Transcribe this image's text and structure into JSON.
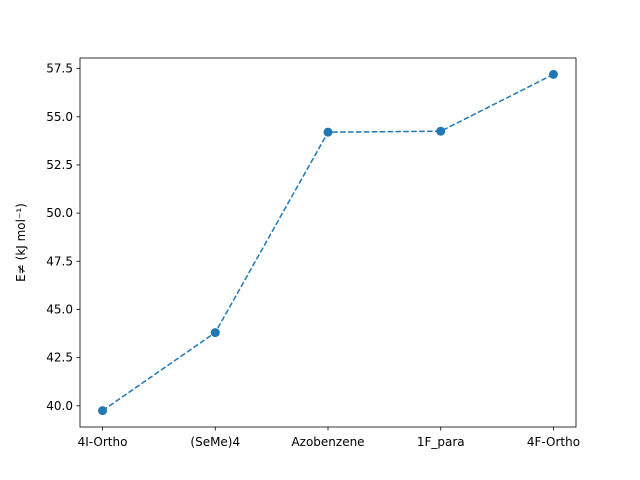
{
  "chart_data": {
    "type": "line",
    "categories": [
      "4I-Ortho",
      "(SeMe)4",
      "Azobenzene",
      "1F_para",
      "4F-Ortho"
    ],
    "series": [
      {
        "values": [
          39.75,
          43.8,
          54.2,
          54.25,
          57.2
        ],
        "color": "#1f77b4",
        "line_style": "dashed",
        "marker": "circle"
      }
    ],
    "xlabel": "",
    "ylabel": "E≠ (kJ mol⁻¹)",
    "ylim": [
      38.9,
      58.05
    ],
    "yticks": [
      40.0,
      42.5,
      45.0,
      47.5,
      50.0,
      52.5,
      55.0,
      57.5
    ],
    "ytick_labels": [
      "40.0",
      "42.5",
      "45.0",
      "47.5",
      "50.0",
      "52.5",
      "55.0",
      "57.5"
    ],
    "grid": false,
    "legend": false
  }
}
